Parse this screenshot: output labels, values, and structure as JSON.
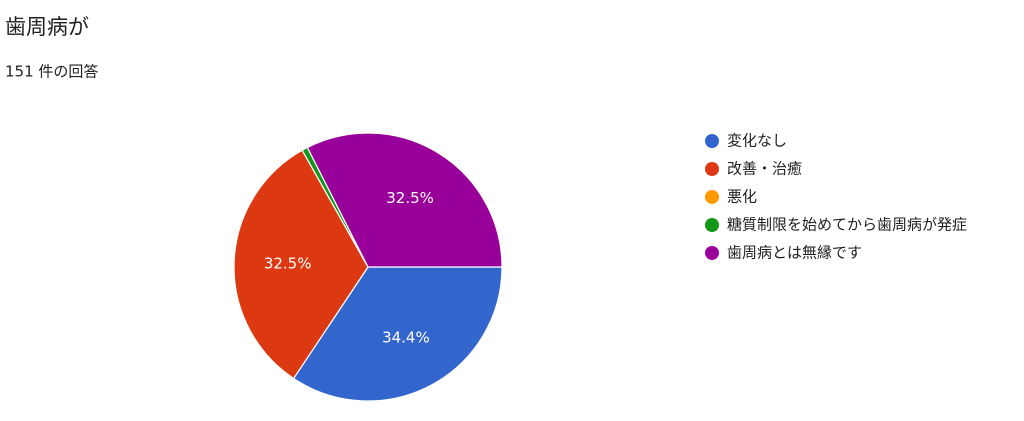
{
  "chart_data": {
    "type": "pie",
    "title": "歯周病が",
    "subtitle": "151 件の回答",
    "categories": [
      "変化なし",
      "改善・治癒",
      "悪化",
      "糖質制限を始めてから歯周病が発症",
      "歯周病とは無縁です"
    ],
    "values": [
      34.4,
      32.5,
      0,
      0.7,
      32.5
    ],
    "value_labels": [
      "34.4%",
      "32.5%",
      null,
      null,
      "32.5%"
    ],
    "colors": [
      "#3366cc",
      "#dc3912",
      "#ff9900",
      "#109618",
      "#990099"
    ],
    "legend": "right"
  }
}
